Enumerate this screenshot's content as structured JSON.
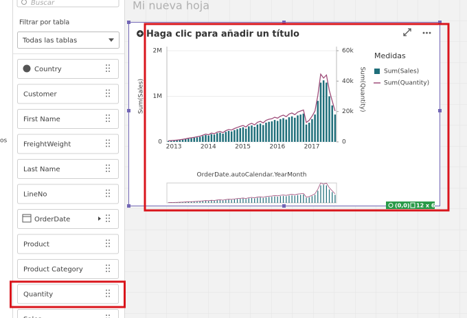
{
  "search_placeholder": "Buscar",
  "sheet_title": "Mi nueva hoja",
  "filter_label": "Filtrar por tabla",
  "table_select": "Todas las tablas",
  "side_text": "os",
  "fields": [
    "Country",
    "Customer",
    "First Name",
    "FreightWeight",
    "Last Name",
    "LineNo",
    "OrderDate",
    "Product",
    "Product Category",
    "Quantity",
    "Sales"
  ],
  "badge": {
    "position": "(0,0)",
    "size": "12 x 6"
  },
  "chart_data": {
    "type": "bar-line",
    "title": "Haga clic para añadir un título",
    "x_label": "OrderDate.autoCalendar.YearMonth",
    "y_label": "Sum(Sales)",
    "y2_label": "Sum(Quantity)",
    "legend_title": "Medidas",
    "legend": "right",
    "grid": true,
    "categories": [
      "2013",
      null,
      null,
      null,
      null,
      null,
      null,
      null,
      null,
      null,
      null,
      null,
      "2014",
      null,
      null,
      null,
      null,
      null,
      null,
      null,
      null,
      null,
      null,
      null,
      "2015",
      null,
      null,
      null,
      null,
      null,
      null,
      null,
      null,
      null,
      null,
      null,
      "2016",
      null,
      null,
      null,
      null,
      null,
      null,
      null,
      null,
      null,
      null,
      null,
      "2017",
      null,
      null,
      null,
      null,
      null,
      null,
      null,
      null,
      null,
      null
    ],
    "ylim": [
      0,
      2000000
    ],
    "yticks": [
      0,
      {
        "value": 1000000,
        "label": "1M"
      },
      {
        "value": 2000000,
        "label": "2M"
      }
    ],
    "y2lim": [
      0,
      60000
    ],
    "y2ticks": [
      0,
      {
        "value": 20000,
        "label": "20k"
      },
      {
        "value": 40000,
        "label": "40k"
      },
      {
        "value": 60000,
        "label": "60k"
      }
    ],
    "series": [
      {
        "name": "Sum(Sales)",
        "color": "#1f6e7a",
        "kind": "bar",
        "values": [
          20000,
          25000,
          30000,
          35000,
          40000,
          50000,
          60000,
          70000,
          80000,
          90000,
          100000,
          110000,
          130000,
          150000,
          140000,
          170000,
          160000,
          190000,
          200000,
          180000,
          220000,
          240000,
          230000,
          260000,
          280000,
          300000,
          320000,
          290000,
          340000,
          360000,
          330000,
          380000,
          400000,
          370000,
          420000,
          440000,
          450000,
          480000,
          460000,
          500000,
          520000,
          490000,
          540000,
          560000,
          530000,
          580000,
          600000,
          620000,
          380000,
          420000,
          500000,
          600000,
          900000,
          1300000,
          1350000,
          1300000,
          1000000,
          800000,
          600000
        ]
      },
      {
        "name": "Sum(Quantity)",
        "color": "#9e4b78",
        "kind": "line",
        "axis": "y2",
        "values": [
          700,
          850,
          1000,
          1200,
          1400,
          1700,
          2000,
          2400,
          2700,
          3000,
          3400,
          3700,
          4400,
          5100,
          4700,
          5800,
          5400,
          6400,
          6800,
          6100,
          7400,
          8100,
          7800,
          8800,
          9500,
          10200,
          10800,
          9800,
          11500,
          12200,
          11200,
          12900,
          13500,
          12500,
          14200,
          14900,
          15200,
          16200,
          15600,
          16900,
          17600,
          16600,
          18300,
          19000,
          17900,
          19600,
          20300,
          21000,
          12800,
          14200,
          16900,
          20300,
          30500,
          44600,
          42000,
          44000,
          33800,
          27000,
          20300
        ]
      }
    ]
  }
}
